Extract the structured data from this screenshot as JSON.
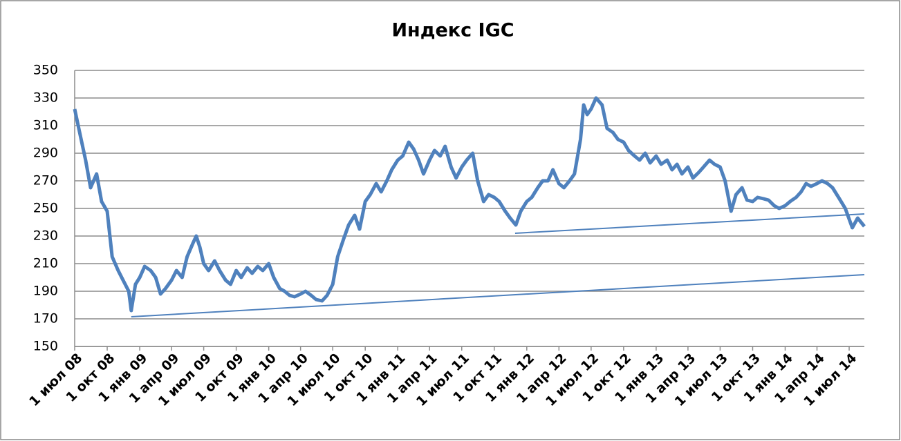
{
  "chart_data": {
    "type": "line",
    "title": "Индекс IGC",
    "x": [
      "2008-07-01",
      "2008-07-15",
      "2008-08-01",
      "2008-08-15",
      "2008-09-01",
      "2008-09-15",
      "2008-10-01",
      "2008-10-15",
      "2008-11-01",
      "2008-11-15",
      "2008-12-01",
      "2008-12-08",
      "2008-12-20",
      "2009-01-01",
      "2009-01-15",
      "2009-02-01",
      "2009-02-15",
      "2009-03-01",
      "2009-03-15",
      "2009-04-01",
      "2009-04-15",
      "2009-05-01",
      "2009-05-15",
      "2009-06-01",
      "2009-06-10",
      "2009-06-20",
      "2009-07-01",
      "2009-07-15",
      "2009-08-01",
      "2009-08-15",
      "2009-09-01",
      "2009-09-15",
      "2009-10-01",
      "2009-10-15",
      "2009-11-01",
      "2009-11-15",
      "2009-12-01",
      "2009-12-15",
      "2010-01-01",
      "2010-01-15",
      "2010-02-01",
      "2010-02-15",
      "2010-03-01",
      "2010-03-15",
      "2010-04-01",
      "2010-04-15",
      "2010-05-01",
      "2010-05-15",
      "2010-06-01",
      "2010-06-15",
      "2010-07-01",
      "2010-07-15",
      "2010-08-01",
      "2010-08-15",
      "2010-09-01",
      "2010-09-15",
      "2010-10-01",
      "2010-10-15",
      "2010-11-01",
      "2010-11-15",
      "2010-12-01",
      "2010-12-15",
      "2011-01-01",
      "2011-01-15",
      "2011-02-01",
      "2011-02-15",
      "2011-03-01",
      "2011-03-15",
      "2011-04-01",
      "2011-04-15",
      "2011-05-01",
      "2011-05-15",
      "2011-06-01",
      "2011-06-15",
      "2011-07-01",
      "2011-07-15",
      "2011-08-01",
      "2011-08-15",
      "2011-09-01",
      "2011-09-15",
      "2011-10-01",
      "2011-10-15",
      "2011-11-01",
      "2011-11-15",
      "2011-12-01",
      "2011-12-15",
      "2012-01-01",
      "2012-01-15",
      "2012-02-01",
      "2012-02-15",
      "2012-03-01",
      "2012-03-15",
      "2012-04-01",
      "2012-04-15",
      "2012-05-01",
      "2012-05-15",
      "2012-06-01",
      "2012-06-10",
      "2012-06-20",
      "2012-07-01",
      "2012-07-15",
      "2012-08-01",
      "2012-08-15",
      "2012-09-01",
      "2012-09-15",
      "2012-10-01",
      "2012-10-15",
      "2012-11-01",
      "2012-11-15",
      "2012-12-01",
      "2012-12-15",
      "2013-01-01",
      "2013-01-15",
      "2013-02-01",
      "2013-02-15",
      "2013-03-01",
      "2013-03-15",
      "2013-04-01",
      "2013-04-15",
      "2013-05-01",
      "2013-05-15",
      "2013-06-01",
      "2013-06-15",
      "2013-07-01",
      "2013-07-15",
      "2013-08-01",
      "2013-08-15",
      "2013-09-01",
      "2013-09-15",
      "2013-10-01",
      "2013-10-15",
      "2013-11-01",
      "2013-11-15",
      "2013-12-01",
      "2013-12-15",
      "2014-01-01",
      "2014-01-15",
      "2014-02-01",
      "2014-02-15",
      "2014-03-01",
      "2014-03-15",
      "2014-04-01",
      "2014-04-15",
      "2014-05-01",
      "2014-05-15",
      "2014-06-01",
      "2014-06-20",
      "2014-07-10",
      "2014-07-25",
      "2014-08-13"
    ],
    "series": [
      {
        "color": "#4f81bd",
        "values": [
          322,
          305,
          285,
          265,
          275,
          255,
          248,
          215,
          205,
          198,
          190,
          176,
          195,
          200,
          208,
          205,
          200,
          188,
          192,
          198,
          205,
          200,
          215,
          225,
          230,
          222,
          210,
          205,
          212,
          205,
          198,
          195,
          205,
          200,
          207,
          203,
          208,
          205,
          210,
          200,
          192,
          190,
          187,
          186,
          188,
          190,
          187,
          184,
          183,
          187,
          195,
          215,
          228,
          238,
          245,
          235,
          255,
          260,
          268,
          262,
          270,
          278,
          285,
          288,
          298,
          293,
          285,
          275,
          285,
          292,
          288,
          295,
          280,
          272,
          280,
          285,
          290,
          270,
          255,
          260,
          258,
          255,
          248,
          243,
          238,
          248,
          255,
          258,
          265,
          270,
          270,
          278,
          268,
          265,
          270,
          275,
          300,
          325,
          318,
          322,
          330,
          325,
          308,
          305,
          300,
          298,
          292,
          288,
          285,
          290,
          283,
          288,
          282,
          285,
          278,
          282,
          275,
          280,
          272,
          276,
          280,
          285,
          282,
          280,
          270,
          248,
          260,
          265,
          256,
          255,
          258,
          257,
          256,
          252,
          250,
          252,
          255,
          258,
          262,
          268,
          266,
          268,
          270,
          268,
          265,
          258,
          250,
          236,
          243,
          237
        ]
      }
    ],
    "trend_lines": [
      {
        "color": "#4f81bd",
        "x": [
          "2008-12-08",
          "2014-08-13"
        ],
        "values": [
          171.5,
          202
        ]
      },
      {
        "color": "#4f81bd",
        "x": [
          "2011-11-29",
          "2014-08-13"
        ],
        "values": [
          232,
          246
        ]
      }
    ],
    "xlim": [
      "2008-07-01",
      "2014-08-13"
    ],
    "xticks": [
      {
        "value": "2008-07-01",
        "label": "1 июл 08"
      },
      {
        "value": "2008-10-01",
        "label": "1 окт 08"
      },
      {
        "value": "2009-01-01",
        "label": "1 янв 09"
      },
      {
        "value": "2009-04-01",
        "label": "1 апр 09"
      },
      {
        "value": "2009-07-01",
        "label": "1 июл 09"
      },
      {
        "value": "2009-10-01",
        "label": "1 окт 09"
      },
      {
        "value": "2010-01-01",
        "label": "1 янв 10"
      },
      {
        "value": "2010-04-01",
        "label": "1 апр 10"
      },
      {
        "value": "2010-07-01",
        "label": "1 июл 10"
      },
      {
        "value": "2010-10-01",
        "label": "1 окт 10"
      },
      {
        "value": "2011-01-01",
        "label": "1 янв 11"
      },
      {
        "value": "2011-04-01",
        "label": "1 апр 11"
      },
      {
        "value": "2011-07-01",
        "label": "1 июл 11"
      },
      {
        "value": "2011-10-01",
        "label": "1 окт 11"
      },
      {
        "value": "2012-01-01",
        "label": "1 янв 12"
      },
      {
        "value": "2012-04-01",
        "label": "1 апр 12"
      },
      {
        "value": "2012-07-01",
        "label": "1 июл 12"
      },
      {
        "value": "2012-10-01",
        "label": "1 окт 12"
      },
      {
        "value": "2013-01-01",
        "label": "1 янв 13"
      },
      {
        "value": "2013-04-01",
        "label": "1 апр 13"
      },
      {
        "value": "2013-07-01",
        "label": "1 июл 13"
      },
      {
        "value": "2013-10-01",
        "label": "1 окт 13"
      },
      {
        "value": "2014-01-01",
        "label": "1 янв 14"
      },
      {
        "value": "2014-04-01",
        "label": "1 апр 14"
      },
      {
        "value": "2014-07-01",
        "label": "1 июл 14"
      }
    ],
    "ylim": [
      150,
      350
    ],
    "yticks": [
      150,
      170,
      190,
      210,
      230,
      250,
      270,
      290,
      310,
      330,
      350
    ],
    "grid": true
  }
}
